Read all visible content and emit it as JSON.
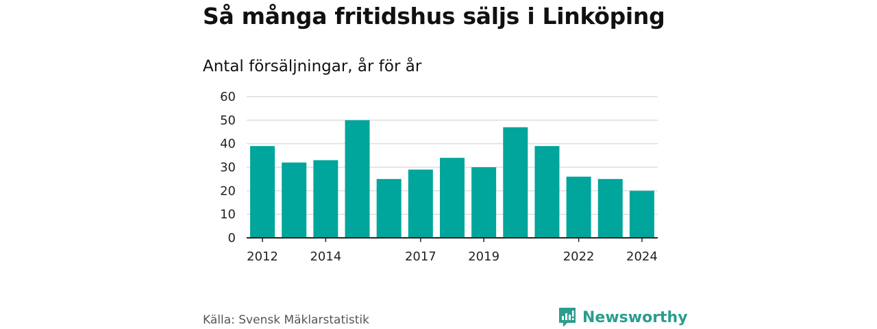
{
  "header": {
    "title": "Så många fritidshus säljs i Linköping",
    "subtitle": "Antal försäljningar, år för år"
  },
  "footer": {
    "source": "Källa: Svensk Mäklarstatistik",
    "brand": "Newsworthy",
    "brand_icon": "newsworthy-logo-icon"
  },
  "colors": {
    "bar": "#00a59b",
    "grid": "#dddddd",
    "axis": "#222222",
    "brand": "#2a9d8f"
  },
  "chart_data": {
    "type": "bar",
    "categories": [
      "2012",
      "2013",
      "2014",
      "2015",
      "2016",
      "2017",
      "2018",
      "2019",
      "2020",
      "2021",
      "2022",
      "2023",
      "2024"
    ],
    "values": [
      39,
      32,
      33,
      50,
      25,
      29,
      34,
      30,
      47,
      39,
      26,
      25,
      20
    ],
    "x_tick_labels": [
      "2012",
      "2014",
      "2017",
      "2019",
      "2022",
      "2024"
    ],
    "y_ticks": [
      "0",
      "10",
      "20",
      "30",
      "40",
      "50",
      "60"
    ],
    "title": "Så många fritidshus säljs i Linköping",
    "subtitle": "Antal försäljningar, år för år",
    "xlabel": "",
    "ylabel": "",
    "ylim": [
      0,
      60
    ],
    "grid": true,
    "legend": "none"
  }
}
